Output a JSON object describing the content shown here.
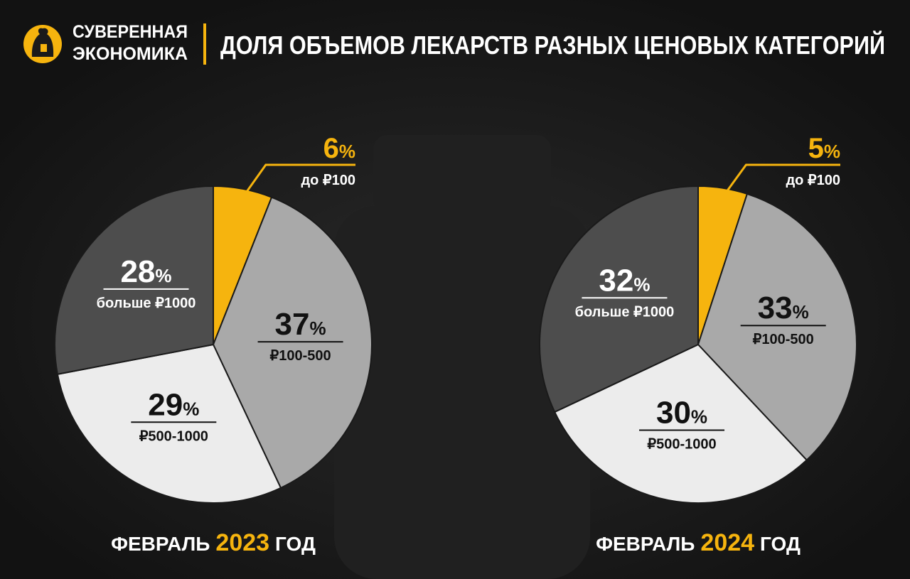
{
  "header": {
    "brand": [
      "СУВЕРЕННАЯ",
      "ЭКОНОМИКА"
    ],
    "title": "ДОЛЯ ОБЪЕМОВ ЛЕКАРСТВ РАЗНЫХ ЦЕНОВЫХ КАТЕГОРИЙ"
  },
  "chart_data": [
    {
      "type": "pie",
      "title": {
        "prefix": "ФЕВРАЛЬ",
        "year": "2023",
        "suffix": "ГОД"
      },
      "categories": [
        "до ₽100",
        "₽100-500",
        "₽500-1000",
        "больше ₽1000"
      ],
      "values": [
        6,
        37,
        29,
        28
      ],
      "value_labels": [
        "6%",
        "37%",
        "29%",
        "28%"
      ],
      "colors": [
        "#f6b40e",
        "#a9a9a9",
        "#ececec",
        "#4d4d4d"
      ]
    },
    {
      "type": "pie",
      "title": {
        "prefix": "ФЕВРАЛЬ",
        "year": "2024",
        "suffix": "ГОД"
      },
      "categories": [
        "до ₽100",
        "₽100-500",
        "₽500-1000",
        "больше ₽1000"
      ],
      "values": [
        5,
        33,
        30,
        32
      ],
      "value_labels": [
        "5%",
        "33%",
        "30%",
        "32%"
      ],
      "colors": [
        "#f6b40e",
        "#a9a9a9",
        "#ececec",
        "#4d4d4d"
      ]
    }
  ]
}
